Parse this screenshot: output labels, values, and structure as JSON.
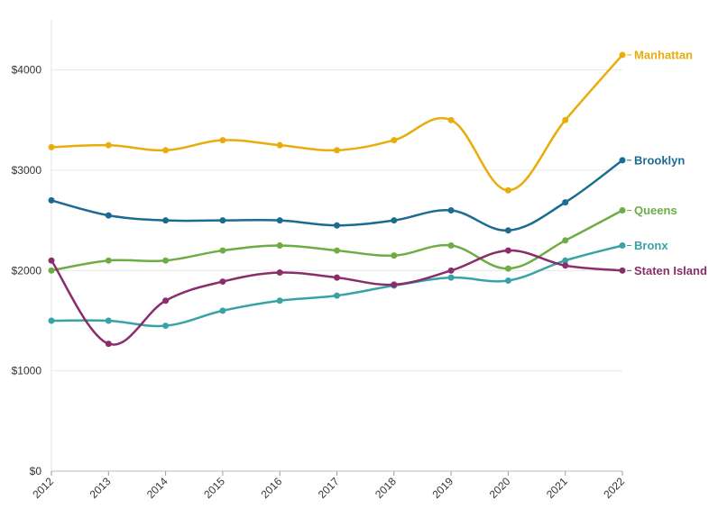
{
  "chart_data": {
    "type": "line",
    "title": "",
    "xlabel": "",
    "ylabel": "",
    "x": [
      2012,
      2013,
      2014,
      2015,
      2016,
      2017,
      2018,
      2019,
      2020,
      2021,
      2022
    ],
    "x_tick_labels": [
      "2012",
      "2013",
      "2014",
      "2015",
      "2016",
      "2017",
      "2018",
      "2019",
      "2020",
      "2021",
      "2022"
    ],
    "ylim": [
      0,
      4500
    ],
    "y_ticks": [
      0,
      1000,
      2000,
      3000,
      4000
    ],
    "y_tick_labels": [
      "$0",
      "$1000",
      "$2000",
      "$3000",
      "$4000"
    ],
    "grid": "horizontal",
    "legend": "direct labels at line ends",
    "series": [
      {
        "name": "Manhattan",
        "color": "#e8ac0b",
        "values": [
          3230,
          3250,
          3200,
          3300,
          3250,
          3200,
          3300,
          3500,
          2800,
          3500,
          4150
        ]
      },
      {
        "name": "Brooklyn",
        "color": "#1c6b92",
        "values": [
          2700,
          2550,
          2500,
          2500,
          2500,
          2450,
          2500,
          2600,
          2400,
          2680,
          3100
        ]
      },
      {
        "name": "Queens",
        "color": "#6fac46",
        "values": [
          2000,
          2100,
          2100,
          2200,
          2250,
          2200,
          2150,
          2250,
          2020,
          2300,
          2600
        ]
      },
      {
        "name": "Bronx",
        "color": "#38a3a5",
        "values": [
          1500,
          1500,
          1450,
          1600,
          1700,
          1750,
          1850,
          1930,
          1900,
          2100,
          2250
        ]
      },
      {
        "name": "Staten Island",
        "color": "#8a2e6b",
        "values": [
          2100,
          1270,
          1700,
          1890,
          1980,
          1930,
          1860,
          2000,
          2200,
          2050,
          2000
        ]
      }
    ]
  }
}
